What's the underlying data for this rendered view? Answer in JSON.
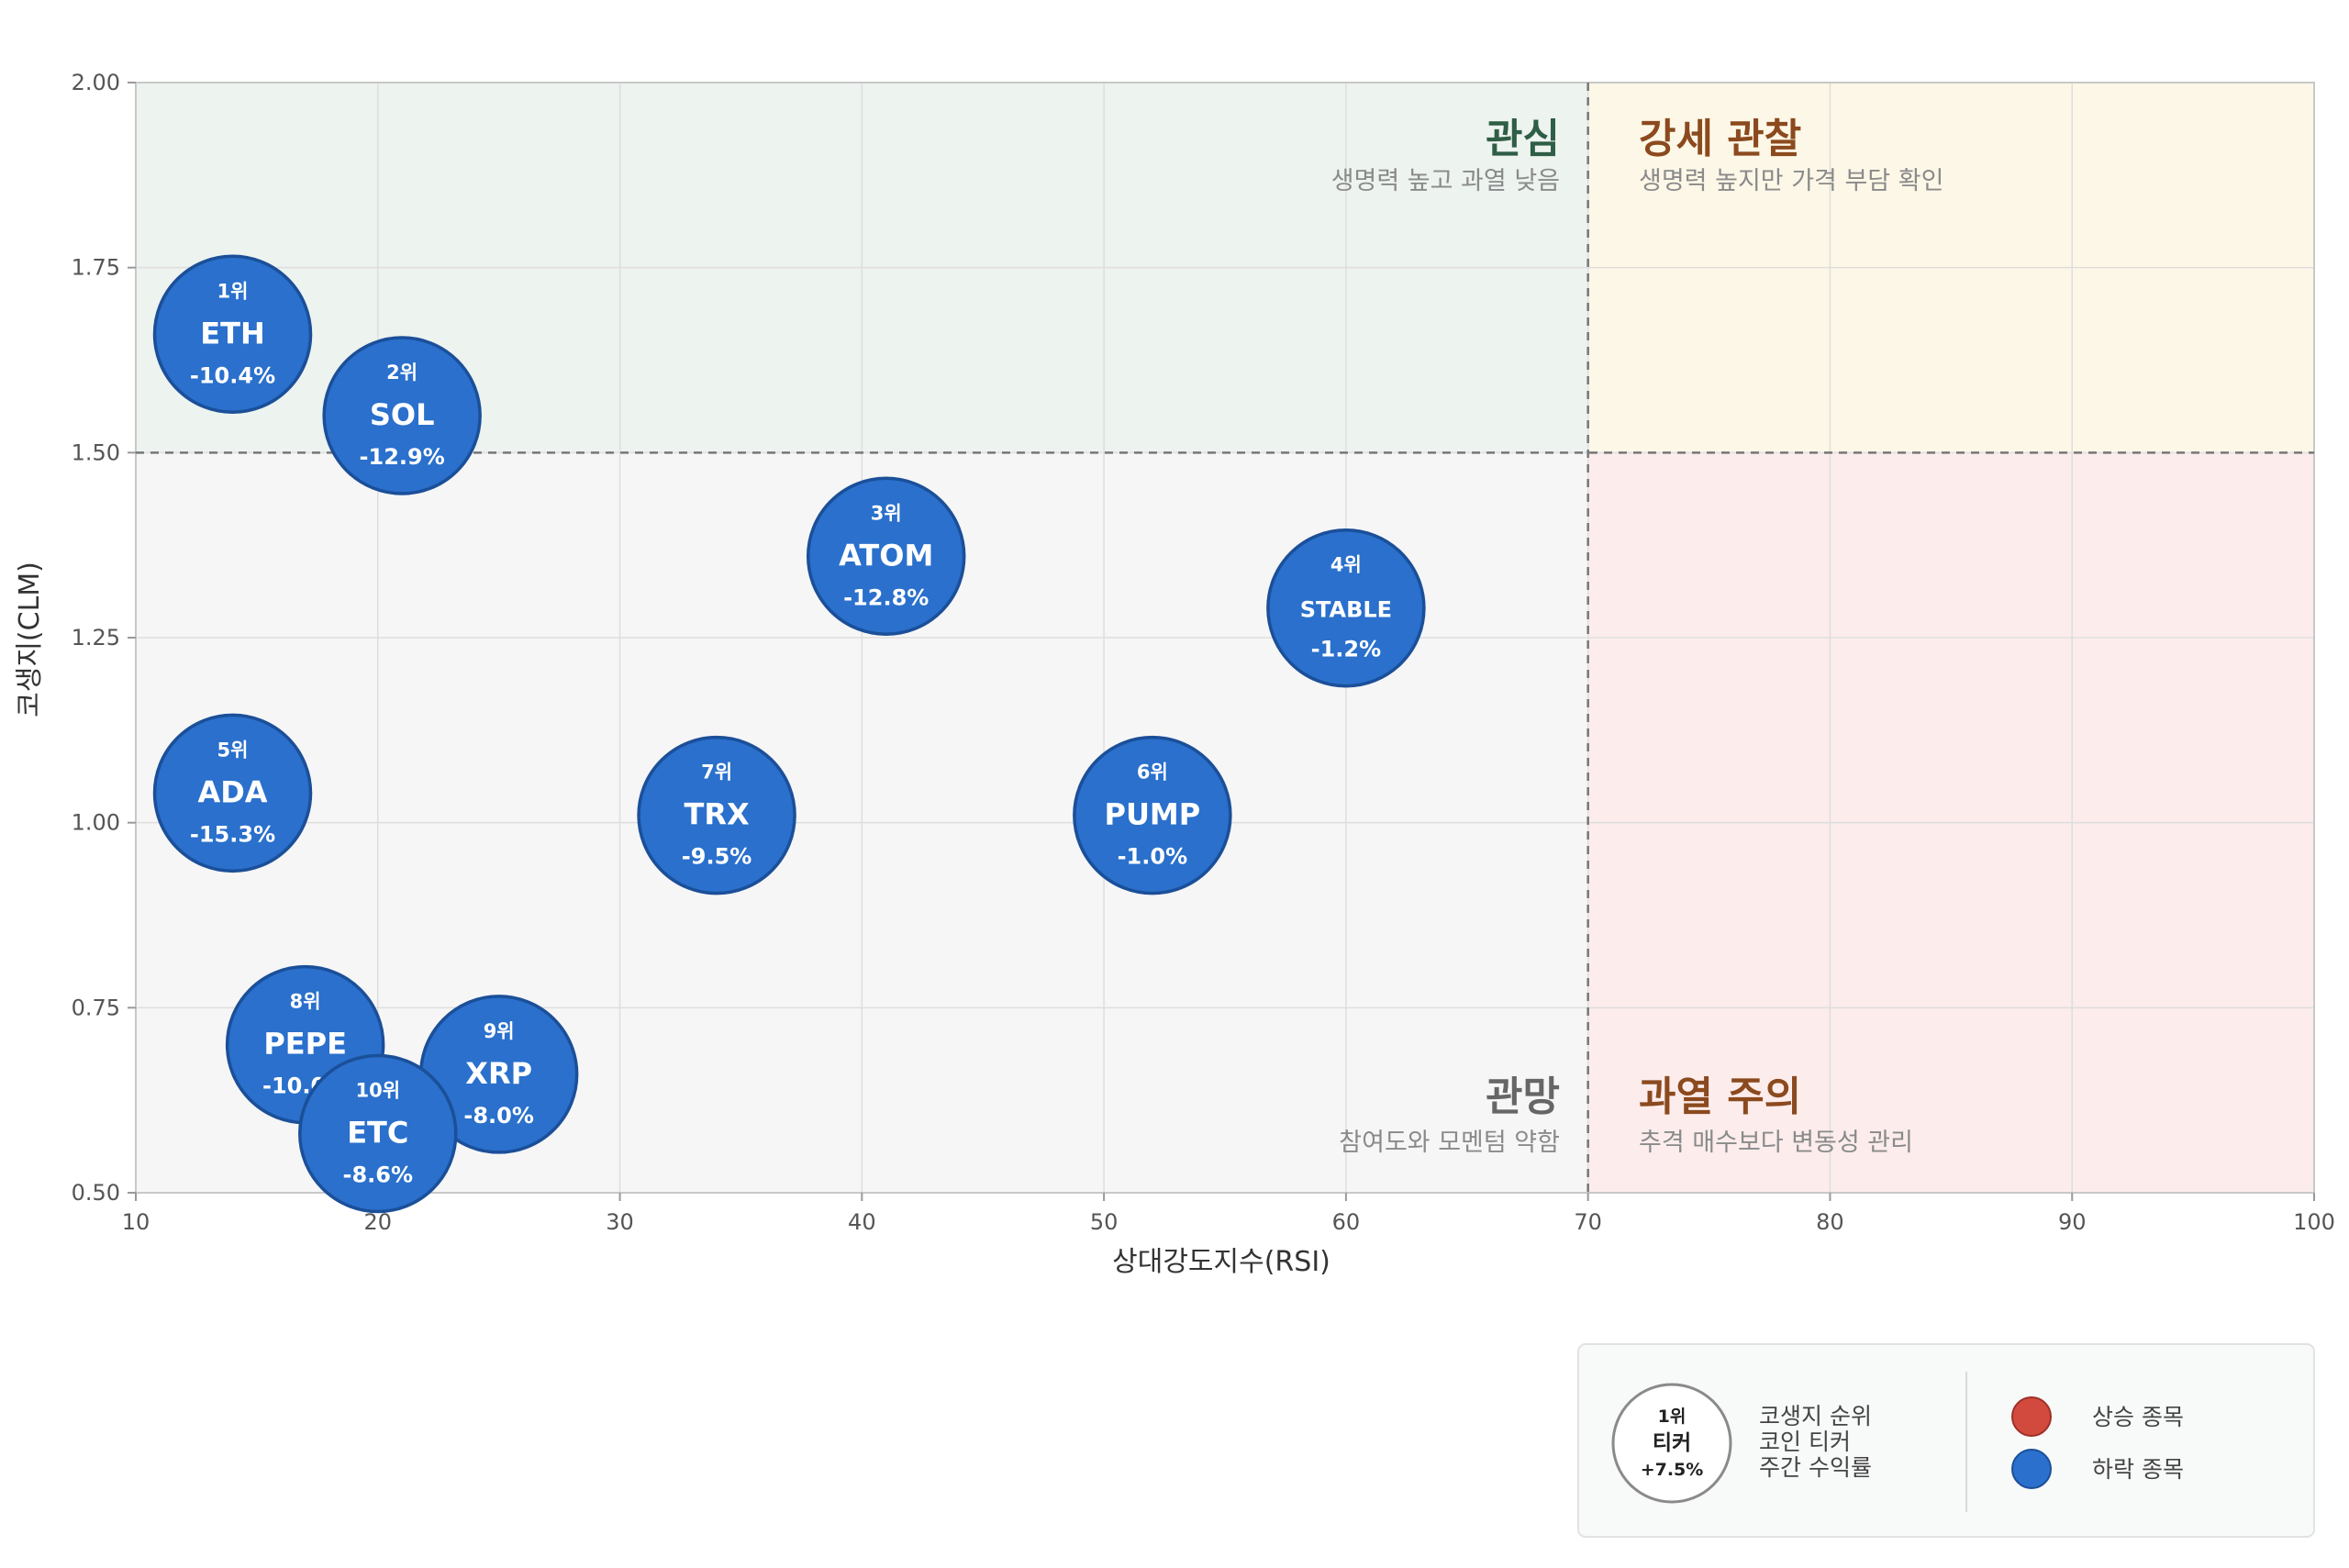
{
  "chart_data": {
    "type": "scatter",
    "xlabel": "상대강도지수(RSI)",
    "ylabel": "코생지(CLM)",
    "xlim": [
      10,
      100
    ],
    "ylim": [
      0.5,
      2.0
    ],
    "xticks": [
      "10",
      "20",
      "30",
      "40",
      "50",
      "60",
      "70",
      "80",
      "90",
      "100"
    ],
    "yticks": [
      "0.50",
      "0.75",
      "1.00",
      "1.25",
      "1.50",
      "1.75",
      "2.00"
    ],
    "grid": true,
    "thresholds": {
      "x": 70,
      "y": 1.5
    },
    "quadrants": [
      {
        "id": "top-left",
        "title": "관심",
        "subtitle": "생명력 높고 과열 낮음",
        "color": "#2e5e45",
        "fill": "#edf3ef"
      },
      {
        "id": "top-right",
        "title": "강세 관찰",
        "subtitle": "생명력 높지만 가격 부담 확인",
        "color": "#8b4a1e",
        "fill": "#fdf7e7"
      },
      {
        "id": "bottom-left",
        "title": "관망",
        "subtitle": "참여도와 모멘텀 약함",
        "color": "#666666",
        "fill": "#f6f6f6"
      },
      {
        "id": "bottom-right",
        "title": "과열 주의",
        "subtitle": "추격 매수보다 변동성 관리",
        "color": "#8b4a1e",
        "fill": "#fcecec"
      }
    ],
    "points": [
      {
        "rank": "1위",
        "ticker": "ETH",
        "return": "-10.4%",
        "x": 14,
        "y": 1.66
      },
      {
        "rank": "2위",
        "ticker": "SOL",
        "return": "-12.9%",
        "x": 21,
        "y": 1.55
      },
      {
        "rank": "3위",
        "ticker": "ATOM",
        "return": "-12.8%",
        "x": 41,
        "y": 1.36
      },
      {
        "rank": "4위",
        "ticker": "STABLE",
        "return": "-1.2%",
        "x": 60,
        "y": 1.29
      },
      {
        "rank": "5위",
        "ticker": "ADA",
        "return": "-15.3%",
        "x": 14,
        "y": 1.04
      },
      {
        "rank": "6위",
        "ticker": "PUMP",
        "return": "-1.0%",
        "x": 52,
        "y": 1.01
      },
      {
        "rank": "7위",
        "ticker": "TRX",
        "return": "-9.5%",
        "x": 34,
        "y": 1.01
      },
      {
        "rank": "8위",
        "ticker": "PEPE",
        "return": "-10.0%",
        "x": 17,
        "y": 0.7
      },
      {
        "rank": "9위",
        "ticker": "XRP",
        "return": "-8.0%",
        "x": 25,
        "y": 0.66
      },
      {
        "rank": "10위",
        "ticker": "ETC",
        "return": "-8.6%",
        "x": 20,
        "y": 0.58
      }
    ],
    "colors": {
      "down": "#2a70cc",
      "down_stroke": "#1b4f99",
      "up": "#d24a3e",
      "up_stroke": "#9e3028"
    }
  },
  "legend": {
    "sample": {
      "rank": "1위",
      "ticker": "티커",
      "return": "+7.5%"
    },
    "explain": [
      "코생지 순위",
      "코인 티커",
      "주간 수익률"
    ],
    "up_label": "상승 종목",
    "down_label": "하락 종목"
  }
}
